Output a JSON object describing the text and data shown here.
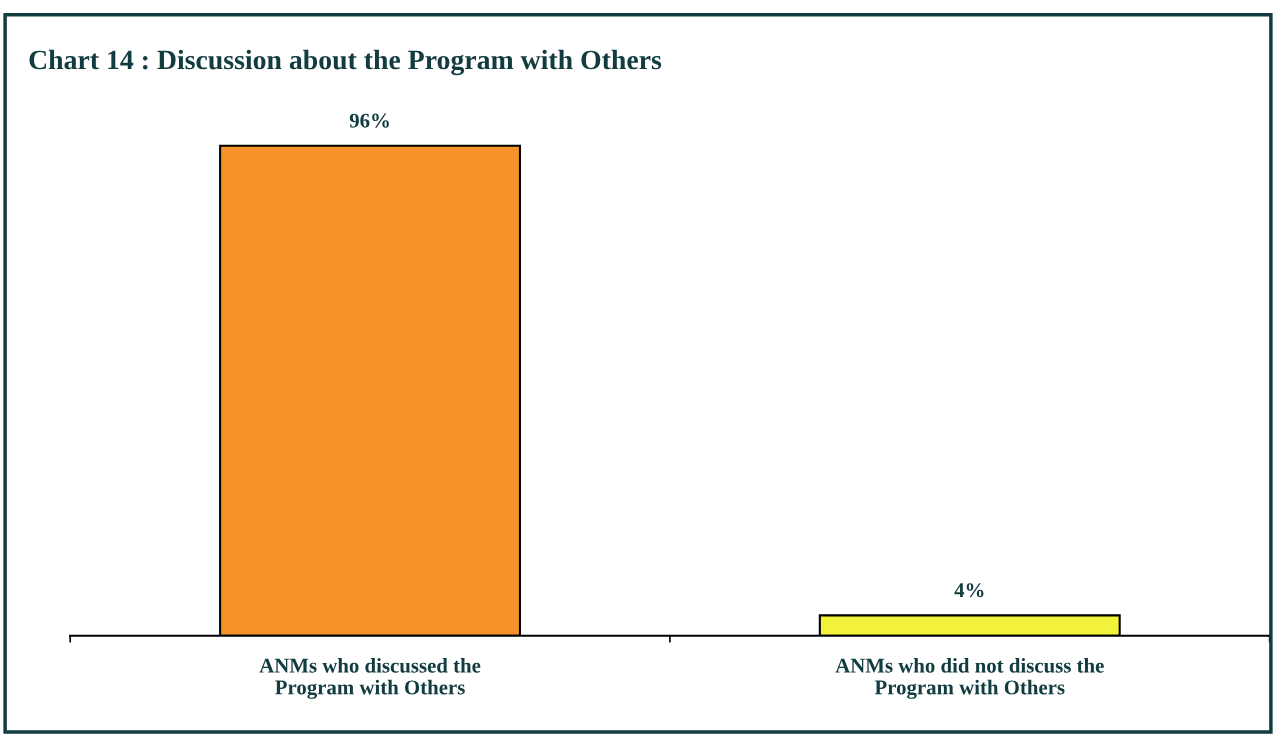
{
  "chart_data": {
    "type": "bar",
    "title": "Chart 14 : Discussion about the Program with Others",
    "categories": [
      "ANMs who discussed the\nProgram with Others",
      "ANMs who did not discuss the\nProgram with Others"
    ],
    "values": [
      96,
      4
    ],
    "colors": [
      "#f7922a",
      "#f2f23a"
    ],
    "value_labels": [
      "96%",
      "4%"
    ]
  }
}
